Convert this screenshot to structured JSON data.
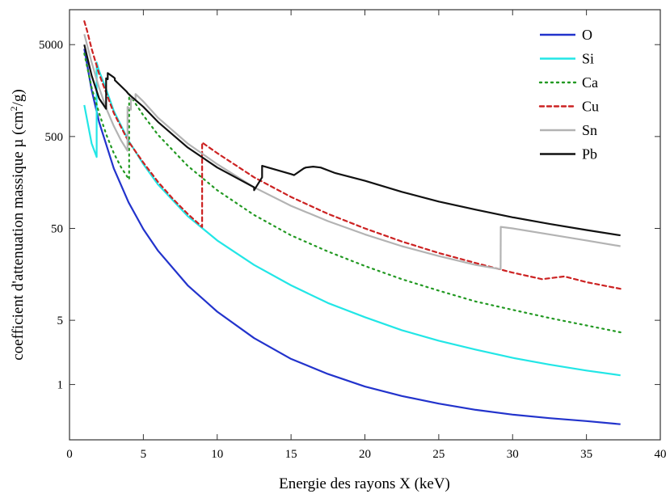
{
  "chart_data": {
    "type": "line",
    "title": "",
    "xlabel": "Energie des rayons X (keV)",
    "ylabel": "coefficient d'attenuation massique µ (cm²/g)",
    "ylabel_parts": {
      "prefix": "coefficient d'attenuation massique µ (cm",
      "sup": "2",
      "suffix": "/g)"
    },
    "xlim": [
      0,
      40
    ],
    "ylim": [
      0.25,
      12000
    ],
    "yscale": "log",
    "xticks": [
      {
        "value": 0,
        "label": "0"
      },
      {
        "value": 5,
        "label": "5"
      },
      {
        "value": 10,
        "label": "10"
      },
      {
        "value": 15,
        "label": "15"
      },
      {
        "value": 20,
        "label": "20"
      },
      {
        "value": 25,
        "label": "25"
      },
      {
        "value": 30,
        "label": "30"
      },
      {
        "value": 35,
        "label": "35"
      },
      {
        "value": 40,
        "label": "40"
      }
    ],
    "yticks": [
      {
        "value": 1,
        "label": "1"
      },
      {
        "value": 5,
        "label": "5"
      },
      {
        "value": 50,
        "label": "50"
      },
      {
        "value": 500,
        "label": "500"
      },
      {
        "value": 5000,
        "label": "5000"
      }
    ],
    "legend_position": "top-right",
    "series": [
      {
        "name": "O",
        "color": "#2233cc",
        "dash": "solid",
        "points": [
          [
            1.0,
            4500
          ],
          [
            1.5,
            1600
          ],
          [
            2,
            720
          ],
          [
            3,
            225
          ],
          [
            4,
            96
          ],
          [
            5,
            49
          ],
          [
            6,
            28.5
          ],
          [
            8,
            12
          ],
          [
            10,
            6.2
          ],
          [
            12.5,
            3.2
          ],
          [
            15,
            1.9
          ],
          [
            17.5,
            1.3
          ],
          [
            20,
            0.95
          ],
          [
            22.5,
            0.75
          ],
          [
            25,
            0.62
          ],
          [
            27.5,
            0.53
          ],
          [
            30,
            0.47
          ],
          [
            32.5,
            0.43
          ],
          [
            35,
            0.4
          ],
          [
            37.3,
            0.37
          ]
        ]
      },
      {
        "name": "Si",
        "color": "#22e6e6",
        "dash": "solid",
        "points": [
          [
            1.0,
            1100
          ],
          [
            1.5,
            420
          ],
          [
            1.84,
            300
          ],
          [
            1.84,
            3200
          ],
          [
            2,
            2600
          ],
          [
            2.5,
            1600
          ],
          [
            3,
            950
          ],
          [
            4,
            450
          ],
          [
            5,
            250
          ],
          [
            6,
            150
          ],
          [
            8,
            68
          ],
          [
            10,
            37
          ],
          [
            12.5,
            20
          ],
          [
            15,
            12
          ],
          [
            17.5,
            7.7
          ],
          [
            20,
            5.4
          ],
          [
            22.5,
            3.9
          ],
          [
            25,
            3.0
          ],
          [
            27.5,
            2.4
          ],
          [
            30,
            1.95
          ],
          [
            32.5,
            1.65
          ],
          [
            35,
            1.42
          ],
          [
            37.3,
            1.26
          ]
        ]
      },
      {
        "name": "Ca",
        "color": "#229922",
        "dash": "dots",
        "points": [
          [
            1.0,
            4000
          ],
          [
            1.5,
            1700
          ],
          [
            2,
            900
          ],
          [
            2.5,
            520
          ],
          [
            3,
            330
          ],
          [
            3.5,
            230
          ],
          [
            4.04,
            170
          ],
          [
            4.04,
            1450
          ],
          [
            5,
            850
          ],
          [
            6,
            520
          ],
          [
            8,
            240
          ],
          [
            10,
            130
          ],
          [
            12.5,
            70
          ],
          [
            15,
            42
          ],
          [
            17.5,
            28
          ],
          [
            20,
            19.5
          ],
          [
            22.5,
            14
          ],
          [
            25,
            10.5
          ],
          [
            27.5,
            8
          ],
          [
            30,
            6.5
          ],
          [
            32.5,
            5.3
          ],
          [
            35,
            4.4
          ],
          [
            37.3,
            3.7
          ]
        ]
      },
      {
        "name": "Cu",
        "color": "#cc2222",
        "dash": "dashes",
        "points": [
          [
            1.0,
            9000
          ],
          [
            1.2,
            7000
          ],
          [
            1.5,
            4500
          ],
          [
            2,
            2400
          ],
          [
            3,
            900
          ],
          [
            4,
            440
          ],
          [
            5,
            260
          ],
          [
            6,
            160
          ],
          [
            7,
            105
          ],
          [
            8,
            72
          ],
          [
            8.98,
            52
          ],
          [
            8.98,
            430
          ],
          [
            10,
            330
          ],
          [
            12.5,
            180
          ],
          [
            15,
            110
          ],
          [
            17.5,
            72
          ],
          [
            20,
            50
          ],
          [
            22.5,
            36
          ],
          [
            25,
            27
          ],
          [
            27.5,
            21
          ],
          [
            30,
            16.5
          ],
          [
            32,
            14
          ],
          [
            33.5,
            15
          ],
          [
            35,
            13
          ],
          [
            37.3,
            11
          ]
        ]
      },
      {
        "name": "Sn",
        "color": "#b3b3b3",
        "dash": "solid",
        "points": [
          [
            1.0,
            6500
          ],
          [
            1.5,
            3200
          ],
          [
            2,
            1700
          ],
          [
            2.5,
            1000
          ],
          [
            3,
            650
          ],
          [
            3.5,
            450
          ],
          [
            3.93,
            350
          ],
          [
            3.93,
            1050
          ],
          [
            4.16,
            980
          ],
          [
            4.16,
            1300
          ],
          [
            4.47,
            1250
          ],
          [
            4.47,
            1450
          ],
          [
            5,
            1200
          ],
          [
            6,
            800
          ],
          [
            8,
            420
          ],
          [
            10,
            250
          ],
          [
            12.5,
            140
          ],
          [
            15,
            88
          ],
          [
            17.5,
            60
          ],
          [
            20,
            43
          ],
          [
            22.5,
            32
          ],
          [
            25,
            25
          ],
          [
            27.5,
            20
          ],
          [
            29.19,
            18
          ],
          [
            29.2,
            52
          ],
          [
            30,
            50
          ],
          [
            32.5,
            43
          ],
          [
            35,
            37
          ],
          [
            37.3,
            32
          ]
        ]
      },
      {
        "name": "Pb",
        "color": "#111111",
        "dash": "solid",
        "points": [
          [
            1.0,
            5000
          ],
          [
            1.5,
            2300
          ],
          [
            2,
            1300
          ],
          [
            2.48,
            1000
          ],
          [
            2.48,
            2150
          ],
          [
            2.59,
            2100
          ],
          [
            2.59,
            2450
          ],
          [
            3,
            2200
          ],
          [
            3.07,
            2150
          ],
          [
            3.07,
            2050
          ],
          [
            3.85,
            1550
          ],
          [
            4,
            1450
          ],
          [
            5,
            1050
          ],
          [
            6,
            720
          ],
          [
            8,
            380
          ],
          [
            10,
            230
          ],
          [
            12.5,
            140
          ],
          [
            12.5,
            130
          ],
          [
            13.04,
            180
          ],
          [
            13.04,
            240
          ],
          [
            15,
            195
          ],
          [
            15.2,
            190
          ],
          [
            15.86,
            225
          ],
          [
            16,
            230
          ],
          [
            16.5,
            235
          ],
          [
            17,
            230
          ],
          [
            18,
            200
          ],
          [
            20,
            165
          ],
          [
            22.5,
            125
          ],
          [
            25,
            98
          ],
          [
            27.5,
            80
          ],
          [
            30,
            66
          ],
          [
            32.5,
            56
          ],
          [
            35,
            48
          ],
          [
            37.3,
            42
          ]
        ]
      }
    ]
  }
}
